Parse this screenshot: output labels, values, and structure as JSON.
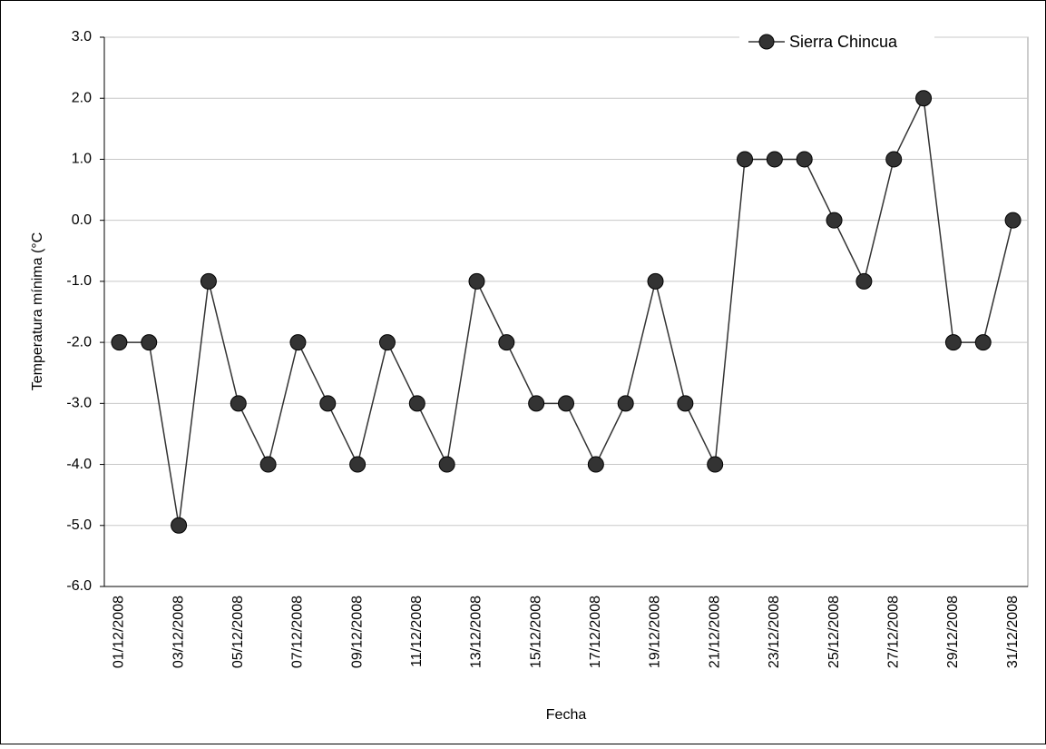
{
  "chart_data": {
    "type": "line",
    "x_label": "Fecha",
    "y_label": "Temperatura mínima (°C",
    "categories": [
      "01/12/2008",
      null,
      "03/12/2008",
      null,
      "05/12/2008",
      null,
      "07/12/2008",
      null,
      "09/12/2008",
      null,
      "11/12/2008",
      null,
      "13/12/2008",
      null,
      "15/12/2008",
      null,
      "17/12/2008",
      null,
      "19/12/2008",
      null,
      "21/12/2008",
      null,
      "23/12/2008",
      null,
      "25/12/2008",
      null,
      "27/12/2008",
      null,
      "29/12/2008",
      null,
      "31/12/2008"
    ],
    "series": [
      {
        "name": "Sierra Chincua",
        "color": "#333333",
        "values": [
          -2,
          -2,
          -5,
          -1,
          -3,
          -4,
          -2,
          -3,
          -4,
          -2,
          -3,
          -4,
          -1,
          -2,
          -3,
          -3,
          -4,
          -3,
          -1,
          -3,
          -4,
          1,
          1,
          1,
          0,
          -1,
          1,
          2,
          -2,
          -2,
          0
        ]
      }
    ],
    "ylim": [
      -6,
      3
    ],
    "yticks": [
      {
        "value": -6,
        "label": "-6.0"
      },
      {
        "value": -5,
        "label": "-5.0"
      },
      {
        "value": -4,
        "label": "-4.0"
      },
      {
        "value": -3,
        "label": "-3.0"
      },
      {
        "value": -2,
        "label": "-2.0"
      },
      {
        "value": -1,
        "label": "-1.0"
      },
      {
        "value": 0,
        "label": "0.0"
      },
      {
        "value": 1,
        "label": "1.0"
      },
      {
        "value": 2,
        "label": "2.0"
      },
      {
        "value": 3,
        "label": "3.0"
      }
    ],
    "grid": true,
    "legend": "top-right"
  }
}
